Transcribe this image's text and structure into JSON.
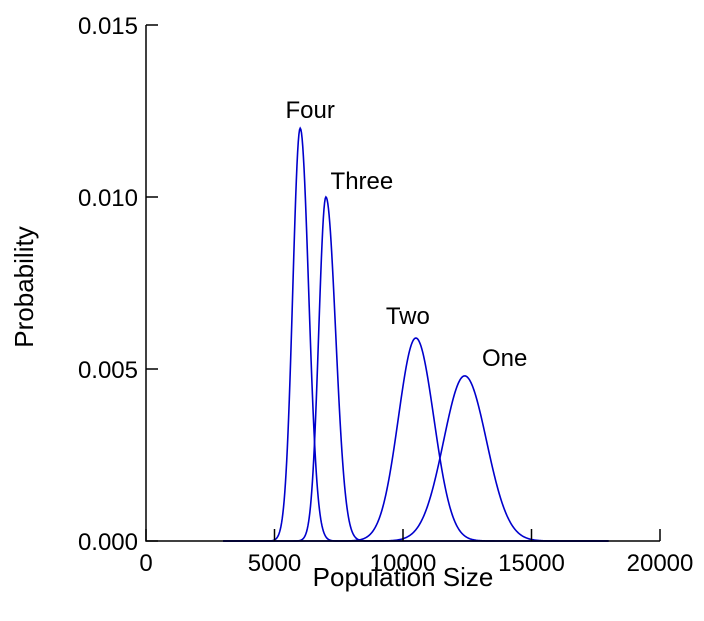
{
  "chart_data": {
    "type": "line",
    "title": "",
    "xlabel": "Population Size",
    "ylabel": "Probability",
    "xlim": [
      0,
      20000
    ],
    "ylim": [
      0,
      0.015
    ],
    "x_ticks": [
      {
        "value": 0,
        "label": "0"
      },
      {
        "value": 5000,
        "label": "5000"
      },
      {
        "value": 10000,
        "label": "10000"
      },
      {
        "value": 15000,
        "label": "15000"
      },
      {
        "value": 20000,
        "label": "20000"
      }
    ],
    "y_ticks": [
      {
        "value": 0,
        "label": "0.000"
      },
      {
        "value": 0.005,
        "label": "0.005"
      },
      {
        "value": 0.01,
        "label": "0.010"
      },
      {
        "value": 0.015,
        "label": "0.015"
      }
    ],
    "grid": false,
    "line_color": "#0000cc",
    "x_domain_of_curves": [
      3000,
      18000
    ],
    "series": [
      {
        "name": "Four",
        "peak_x": 6000,
        "peak_y": 0.012,
        "spread_left": 290,
        "spread_right": 330
      },
      {
        "name": "Three",
        "peak_x": 7000,
        "peak_y": 0.01,
        "spread_left": 280,
        "spread_right": 380
      },
      {
        "name": "Two",
        "peak_x": 10500,
        "peak_y": 0.0059,
        "spread_left": 680,
        "spread_right": 700
      },
      {
        "name": "One",
        "peak_x": 12400,
        "peak_y": 0.0048,
        "spread_left": 820,
        "spread_right": 850
      }
    ]
  }
}
